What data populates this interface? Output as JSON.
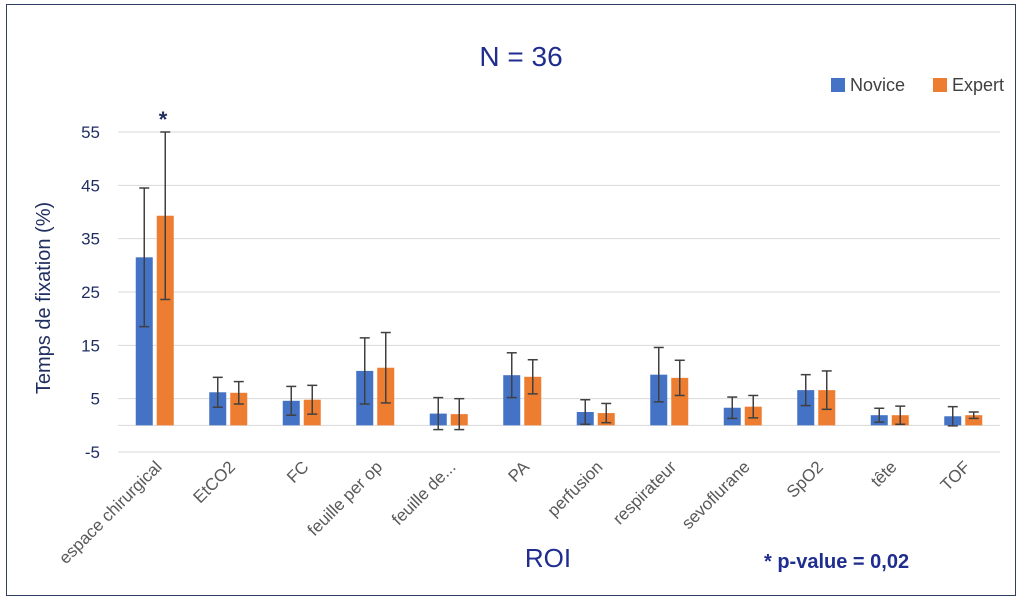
{
  "chart_data": {
    "type": "bar",
    "title": "N = 36",
    "xlabel": "ROI",
    "ylabel": "Temps de fixation (%)",
    "ylim": [
      -5,
      60
    ],
    "yticks": [
      -5,
      5,
      15,
      25,
      35,
      45,
      55
    ],
    "grid": true,
    "legend_position": "top-right",
    "categories": [
      "espace chirurgical",
      "EtCO2",
      "FC",
      "feuille per op",
      "feuille de...",
      "PA",
      "perfusion",
      "respirateur",
      "sevoflurane",
      "SpO2",
      "tête",
      "TOF"
    ],
    "series": [
      {
        "name": "Novice",
        "color": "#4472c4",
        "values": [
          31.5,
          6.2,
          4.6,
          10.2,
          2.2,
          9.4,
          2.5,
          9.5,
          3.3,
          6.6,
          1.9,
          1.7
        ],
        "error": [
          13.0,
          2.8,
          2.7,
          6.2,
          3.0,
          4.2,
          2.3,
          5.1,
          2.0,
          2.9,
          1.3,
          1.8
        ]
      },
      {
        "name": "Expert",
        "color": "#ed7d31",
        "values": [
          39.3,
          6.1,
          4.8,
          10.8,
          2.1,
          9.1,
          2.3,
          8.9,
          3.5,
          6.6,
          1.9,
          1.9
        ],
        "error": [
          15.7,
          2.1,
          2.7,
          6.6,
          2.9,
          3.2,
          1.8,
          3.3,
          2.1,
          3.6,
          1.7,
          0.6
        ]
      }
    ],
    "annotations": {
      "star_marker": "*",
      "star_category_index": 0,
      "pvalue_note": "* p-value = 0,02"
    }
  }
}
